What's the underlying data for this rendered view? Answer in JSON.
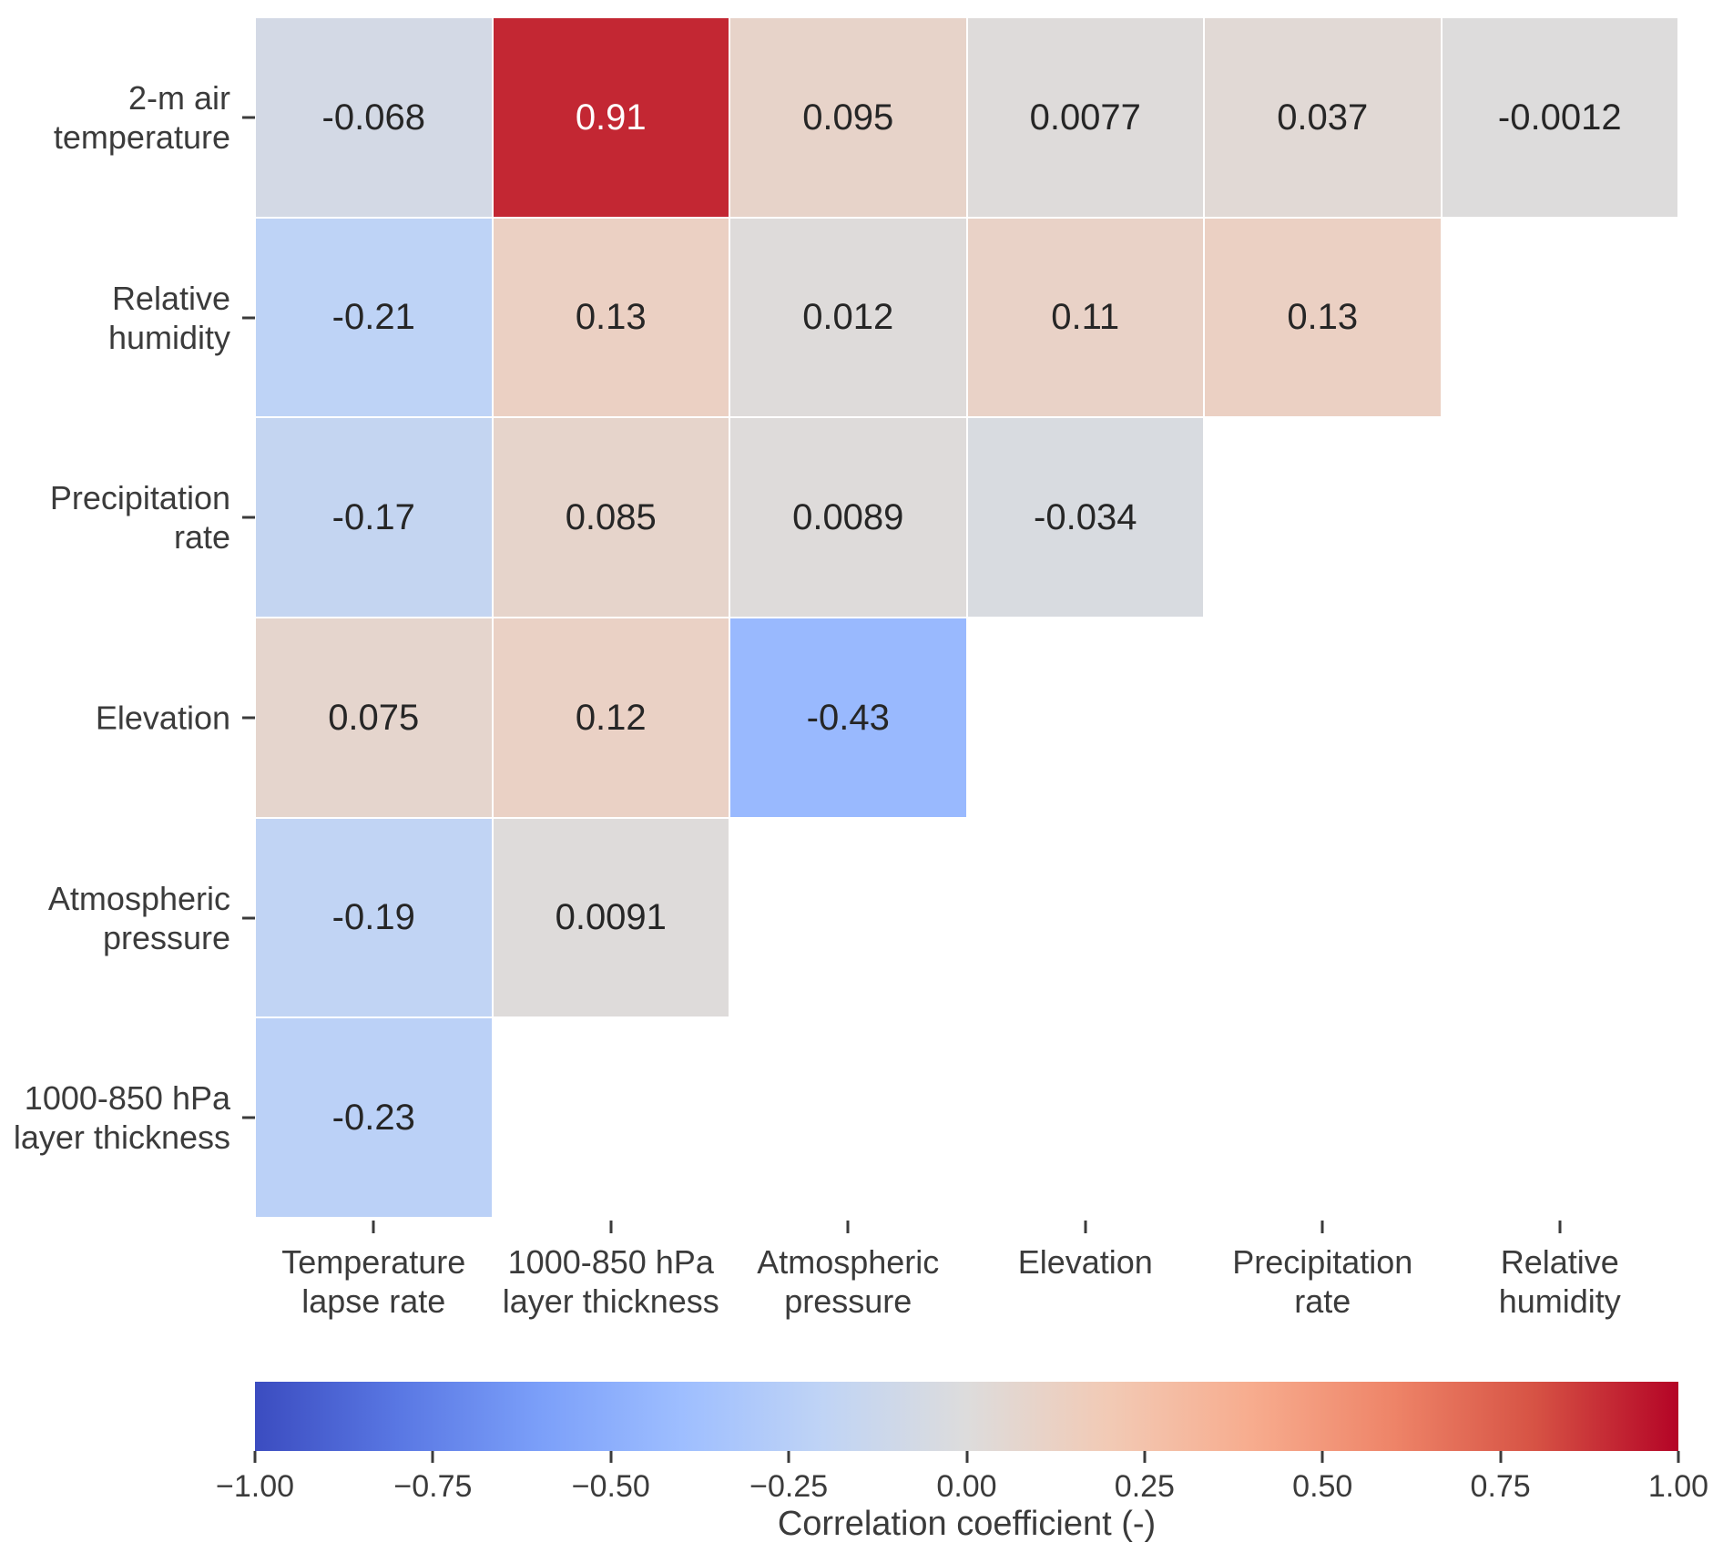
{
  "chart_data": {
    "type": "heatmap",
    "subtype": "correlation-matrix-lower-triangle",
    "title": "",
    "rows": [
      "2-m air temperature",
      "Relative humidity",
      "Precipitation rate",
      "Elevation",
      "Atmospheric pressure",
      "1000-850 hPa layer thickness"
    ],
    "row_label_lines": [
      [
        "2-m air",
        "temperature"
      ],
      [
        "Relative",
        "humidity"
      ],
      [
        "Precipitation",
        "rate"
      ],
      [
        "Elevation"
      ],
      [
        "Atmospheric",
        "pressure"
      ],
      [
        "1000-850 hPa",
        "layer thickness"
      ]
    ],
    "columns": [
      "Temperature lapse rate",
      "1000-850 hPa layer thickness",
      "Atmospheric pressure",
      "Elevation",
      "Precipitation rate",
      "Relative humidity"
    ],
    "col_label_lines": [
      [
        "Temperature",
        "lapse rate"
      ],
      [
        "1000-850 hPa",
        "layer thickness"
      ],
      [
        "Atmospheric",
        "pressure"
      ],
      [
        "Elevation"
      ],
      [
        "Precipitation",
        "rate"
      ],
      [
        "Relative",
        "humidity"
      ]
    ],
    "values": [
      [
        -0.068,
        0.91,
        0.095,
        0.0077,
        0.037,
        -0.0012
      ],
      [
        -0.21,
        0.13,
        0.012,
        0.11,
        0.13,
        null
      ],
      [
        -0.17,
        0.085,
        0.0089,
        -0.034,
        null,
        null
      ],
      [
        0.075,
        0.12,
        -0.43,
        null,
        null,
        null
      ],
      [
        -0.19,
        0.0091,
        null,
        null,
        null,
        null
      ],
      [
        -0.23,
        null,
        null,
        null,
        null,
        null
      ]
    ],
    "cell_labels": [
      [
        "-0.068",
        "0.91",
        "0.095",
        "0.0077",
        "0.037",
        "-0.0012"
      ],
      [
        "-0.21",
        "0.13",
        "0.012",
        "0.11",
        "0.13",
        null
      ],
      [
        "-0.17",
        "0.085",
        "0.0089",
        "-0.034",
        null,
        null
      ],
      [
        "0.075",
        "0.12",
        "-0.43",
        null,
        null,
        null
      ],
      [
        "-0.19",
        "0.0091",
        null,
        null,
        null,
        null
      ],
      [
        "-0.23",
        null,
        null,
        null,
        null,
        null
      ]
    ],
    "colorbar": {
      "label": "Correlation coefficient (-)",
      "tick_labels": [
        "−1.00",
        "−0.75",
        "−0.50",
        "−0.25",
        "0.00",
        "0.25",
        "0.50",
        "0.75",
        "1.00"
      ],
      "tick_values": [
        -1.0,
        -0.75,
        -0.5,
        -0.25,
        0.0,
        0.25,
        0.5,
        0.75,
        1.0
      ],
      "vmin": -1.0,
      "vmax": 1.0,
      "position": "bottom-horizontal"
    },
    "colormap": {
      "name": "coolwarm",
      "anchors": [
        "#3b4cc0",
        "#5977e3",
        "#7b9ff9",
        "#9ebeff",
        "#c0d4f5",
        "#dddcdc",
        "#f2cab5",
        "#f7ac8e",
        "#ee8468",
        "#d65244",
        "#b40426"
      ]
    },
    "grid": "white 2px lines between cells",
    "legend_position": "none",
    "colors": {
      "annotation_text": "#262626",
      "annotation_text_on_dark": "#ffffff",
      "axis_label_text": "#3b3b3b",
      "tick_mark": "#3b3b3b",
      "background": "#ffffff"
    }
  }
}
